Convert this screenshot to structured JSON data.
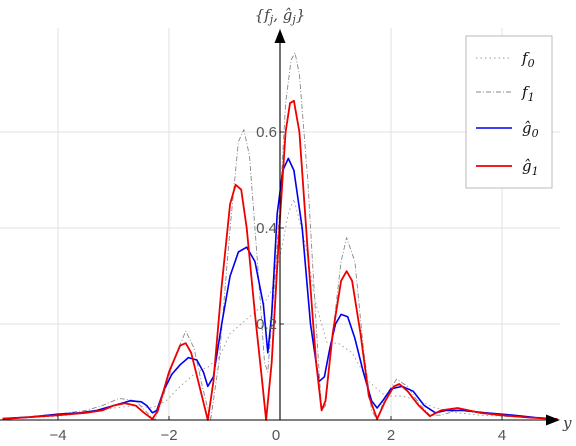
{
  "chart_data": {
    "type": "line",
    "title": "",
    "xlabel": "y",
    "ylabel": "{f_j, ĝ_j}",
    "xlim": [
      -5,
      5.2
    ],
    "ylim": [
      0,
      0.8
    ],
    "x_ticks": [
      -4,
      -2,
      0,
      2,
      4
    ],
    "x_tick_labels": [
      "−4",
      "−2",
      "0",
      "2",
      "4"
    ],
    "y_ticks": [
      0.2,
      0.4,
      0.6
    ],
    "y_tick_labels": [
      "0.2",
      "0.4",
      "0.6"
    ],
    "grid": true,
    "legend_position": "top-right",
    "series": [
      {
        "name": "f0",
        "color": "#999999",
        "dash": "1.5,3",
        "width": 0.9,
        "points": [
          [
            -5,
            0.002
          ],
          [
            -4,
            0.008
          ],
          [
            -3.5,
            0.015
          ],
          [
            -3,
            0.025
          ],
          [
            -2.6,
            0.03
          ],
          [
            -2.3,
            0.025
          ],
          [
            -2.05,
            0.04
          ],
          [
            -1.8,
            0.07
          ],
          [
            -1.5,
            0.1
          ],
          [
            -1.3,
            0.11
          ],
          [
            -1.1,
            0.13
          ],
          [
            -0.9,
            0.18
          ],
          [
            -0.6,
            0.21
          ],
          [
            -0.3,
            0.24
          ],
          [
            -0.15,
            0.27
          ],
          [
            0,
            0.34
          ],
          [
            0.15,
            0.43
          ],
          [
            0.25,
            0.46
          ],
          [
            0.45,
            0.37
          ],
          [
            0.65,
            0.24
          ],
          [
            0.85,
            0.16
          ],
          [
            1.05,
            0.16
          ],
          [
            1.3,
            0.14
          ],
          [
            1.6,
            0.08
          ],
          [
            1.9,
            0.05
          ],
          [
            2.2,
            0.05
          ],
          [
            2.5,
            0.04
          ],
          [
            2.8,
            0.025
          ],
          [
            3.2,
            0.015
          ],
          [
            3.6,
            0.01
          ],
          [
            4,
            0.008
          ],
          [
            4.5,
            0.005
          ],
          [
            5,
            0.002
          ]
        ]
      },
      {
        "name": "f1",
        "color": "#888888",
        "dash": "5,2,1,2",
        "width": 0.9,
        "points": [
          [
            -5,
            0.003
          ],
          [
            -4,
            0.012
          ],
          [
            -3.5,
            0.02
          ],
          [
            -3.2,
            0.03
          ],
          [
            -2.9,
            0.045
          ],
          [
            -2.6,
            0.04
          ],
          [
            -2.35,
            0.01
          ],
          [
            -2.25,
            0
          ],
          [
            -2.1,
            0.05
          ],
          [
            -1.9,
            0.13
          ],
          [
            -1.7,
            0.185
          ],
          [
            -1.55,
            0.15
          ],
          [
            -1.4,
            0.07
          ],
          [
            -1.25,
            0
          ],
          [
            -1.1,
            0.12
          ],
          [
            -0.9,
            0.4
          ],
          [
            -0.75,
            0.58
          ],
          [
            -0.65,
            0.605
          ],
          [
            -0.55,
            0.55
          ],
          [
            -0.4,
            0.32
          ],
          [
            -0.28,
            0.12
          ],
          [
            -0.22,
            0.1
          ],
          [
            -0.1,
            0.28
          ],
          [
            0,
            0.45
          ],
          [
            0.1,
            0.66
          ],
          [
            0.2,
            0.75
          ],
          [
            0.27,
            0.765
          ],
          [
            0.35,
            0.72
          ],
          [
            0.5,
            0.5
          ],
          [
            0.65,
            0.2
          ],
          [
            0.75,
            0.02
          ],
          [
            0.82,
            0.03
          ],
          [
            0.95,
            0.18
          ],
          [
            1.1,
            0.33
          ],
          [
            1.2,
            0.38
          ],
          [
            1.35,
            0.33
          ],
          [
            1.5,
            0.15
          ],
          [
            1.65,
            0.02
          ],
          [
            1.75,
            0
          ],
          [
            1.9,
            0.05
          ],
          [
            2.1,
            0.085
          ],
          [
            2.3,
            0.07
          ],
          [
            2.5,
            0.035
          ],
          [
            2.7,
            0.01
          ],
          [
            2.9,
            0.01
          ],
          [
            3.2,
            0.02
          ],
          [
            3.6,
            0.015
          ],
          [
            4,
            0.008
          ],
          [
            4.5,
            0.005
          ],
          [
            5,
            0.002
          ]
        ]
      },
      {
        "name": "ĝ0",
        "color": "#0000ee",
        "dash": "",
        "width": 1.6,
        "points": [
          [
            -5,
            0.003
          ],
          [
            -4.5,
            0.006
          ],
          [
            -4,
            0.012
          ],
          [
            -3.6,
            0.015
          ],
          [
            -3.3,
            0.02
          ],
          [
            -3,
            0.03
          ],
          [
            -2.7,
            0.04
          ],
          [
            -2.5,
            0.038
          ],
          [
            -2.4,
            0.03
          ],
          [
            -2.3,
            0.015
          ],
          [
            -2.22,
            0.02
          ],
          [
            -2.1,
            0.06
          ],
          [
            -1.95,
            0.095
          ],
          [
            -1.8,
            0.115
          ],
          [
            -1.65,
            0.13
          ],
          [
            -1.5,
            0.125
          ],
          [
            -1.38,
            0.1
          ],
          [
            -1.3,
            0.07
          ],
          [
            -1.2,
            0.09
          ],
          [
            -1.05,
            0.2
          ],
          [
            -0.9,
            0.3
          ],
          [
            -0.75,
            0.35
          ],
          [
            -0.6,
            0.36
          ],
          [
            -0.45,
            0.33
          ],
          [
            -0.3,
            0.24
          ],
          [
            -0.22,
            0.14
          ],
          [
            -0.15,
            0.22
          ],
          [
            -0.05,
            0.43
          ],
          [
            0.05,
            0.52
          ],
          [
            0.15,
            0.545
          ],
          [
            0.25,
            0.52
          ],
          [
            0.4,
            0.4
          ],
          [
            0.55,
            0.2
          ],
          [
            0.7,
            0.08
          ],
          [
            0.8,
            0.09
          ],
          [
            0.9,
            0.15
          ],
          [
            1,
            0.2
          ],
          [
            1.1,
            0.22
          ],
          [
            1.22,
            0.215
          ],
          [
            1.35,
            0.17
          ],
          [
            1.5,
            0.1
          ],
          [
            1.65,
            0.04
          ],
          [
            1.75,
            0.025
          ],
          [
            1.85,
            0.04
          ],
          [
            2,
            0.065
          ],
          [
            2.2,
            0.07
          ],
          [
            2.4,
            0.06
          ],
          [
            2.6,
            0.03
          ],
          [
            2.8,
            0.015
          ],
          [
            3,
            0.02
          ],
          [
            3.3,
            0.02
          ],
          [
            3.7,
            0.015
          ],
          [
            4.2,
            0.01
          ],
          [
            4.6,
            0.005
          ],
          [
            5,
            0.002
          ]
        ]
      },
      {
        "name": "ĝ1",
        "color": "#ee0000",
        "dash": "",
        "width": 1.8,
        "points": [
          [
            -5,
            0.002
          ],
          [
            -4.5,
            0.006
          ],
          [
            -4,
            0.01
          ],
          [
            -3.5,
            0.015
          ],
          [
            -3.2,
            0.02
          ],
          [
            -3,
            0.03
          ],
          [
            -2.8,
            0.035
          ],
          [
            -2.6,
            0.03
          ],
          [
            -2.45,
            0.015
          ],
          [
            -2.3,
            0.002
          ],
          [
            -2.2,
            0.02
          ],
          [
            -2,
            0.1
          ],
          [
            -1.8,
            0.155
          ],
          [
            -1.7,
            0.16
          ],
          [
            -1.6,
            0.14
          ],
          [
            -1.45,
            0.07
          ],
          [
            -1.3,
            0
          ],
          [
            -1.2,
            0.08
          ],
          [
            -1.05,
            0.28
          ],
          [
            -0.9,
            0.45
          ],
          [
            -0.8,
            0.49
          ],
          [
            -0.7,
            0.48
          ],
          [
            -0.6,
            0.4
          ],
          [
            -0.45,
            0.22
          ],
          [
            -0.32,
            0.08
          ],
          [
            -0.25,
            0
          ],
          [
            -0.15,
            0.12
          ],
          [
            0,
            0.42
          ],
          [
            0.1,
            0.6
          ],
          [
            0.18,
            0.66
          ],
          [
            0.25,
            0.665
          ],
          [
            0.35,
            0.6
          ],
          [
            0.5,
            0.35
          ],
          [
            0.65,
            0.12
          ],
          [
            0.75,
            0.02
          ],
          [
            0.82,
            0.04
          ],
          [
            0.95,
            0.18
          ],
          [
            1.1,
            0.29
          ],
          [
            1.2,
            0.31
          ],
          [
            1.3,
            0.29
          ],
          [
            1.45,
            0.18
          ],
          [
            1.6,
            0.05
          ],
          [
            1.75,
            0.002
          ],
          [
            1.9,
            0.04
          ],
          [
            2.05,
            0.07
          ],
          [
            2.15,
            0.075
          ],
          [
            2.3,
            0.06
          ],
          [
            2.5,
            0.03
          ],
          [
            2.7,
            0.008
          ],
          [
            2.9,
            0.02
          ],
          [
            3.2,
            0.025
          ],
          [
            3.6,
            0.015
          ],
          [
            4,
            0.01
          ],
          [
            4.5,
            0.005
          ],
          [
            5,
            0.002
          ]
        ]
      }
    ],
    "legend": [
      {
        "base": "f",
        "sub": "0",
        "hat": false
      },
      {
        "base": "f",
        "sub": "1",
        "hat": false
      },
      {
        "base": "g",
        "sub": "0",
        "hat": true
      },
      {
        "base": "g",
        "sub": "1",
        "hat": true
      }
    ]
  }
}
